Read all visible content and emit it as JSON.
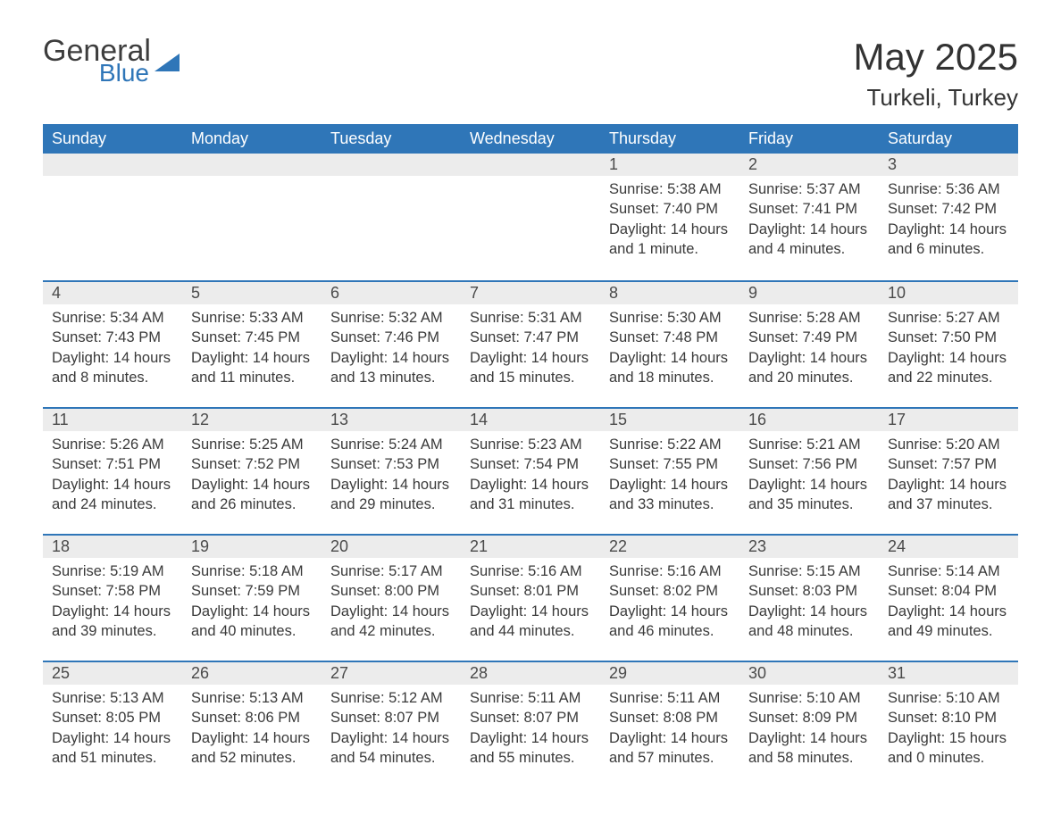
{
  "brand": {
    "word1": "General",
    "word2": "Blue"
  },
  "title": "May 2025",
  "location": "Turkeli, Turkey",
  "colors": {
    "accent": "#2f76b8",
    "header_bg": "#2f76b8",
    "header_text": "#ffffff",
    "daynum_bg": "#ececec",
    "text": "#3a3a3a",
    "background": "#ffffff"
  },
  "weekday_labels": [
    "Sunday",
    "Monday",
    "Tuesday",
    "Wednesday",
    "Thursday",
    "Friday",
    "Saturday"
  ],
  "sunrise_label": "Sunrise:",
  "sunset_label": "Sunset:",
  "daylight_label": "Daylight:",
  "weeks": [
    [
      {
        "empty": true
      },
      {
        "empty": true
      },
      {
        "empty": true
      },
      {
        "empty": true
      },
      {
        "n": "1",
        "sunrise": "5:38 AM",
        "sunset": "7:40 PM",
        "daylight": "14 hours and 1 minute."
      },
      {
        "n": "2",
        "sunrise": "5:37 AM",
        "sunset": "7:41 PM",
        "daylight": "14 hours and 4 minutes."
      },
      {
        "n": "3",
        "sunrise": "5:36 AM",
        "sunset": "7:42 PM",
        "daylight": "14 hours and 6 minutes."
      }
    ],
    [
      {
        "n": "4",
        "sunrise": "5:34 AM",
        "sunset": "7:43 PM",
        "daylight": "14 hours and 8 minutes."
      },
      {
        "n": "5",
        "sunrise": "5:33 AM",
        "sunset": "7:45 PM",
        "daylight": "14 hours and 11 minutes."
      },
      {
        "n": "6",
        "sunrise": "5:32 AM",
        "sunset": "7:46 PM",
        "daylight": "14 hours and 13 minutes."
      },
      {
        "n": "7",
        "sunrise": "5:31 AM",
        "sunset": "7:47 PM",
        "daylight": "14 hours and 15 minutes."
      },
      {
        "n": "8",
        "sunrise": "5:30 AM",
        "sunset": "7:48 PM",
        "daylight": "14 hours and 18 minutes."
      },
      {
        "n": "9",
        "sunrise": "5:28 AM",
        "sunset": "7:49 PM",
        "daylight": "14 hours and 20 minutes."
      },
      {
        "n": "10",
        "sunrise": "5:27 AM",
        "sunset": "7:50 PM",
        "daylight": "14 hours and 22 minutes."
      }
    ],
    [
      {
        "n": "11",
        "sunrise": "5:26 AM",
        "sunset": "7:51 PM",
        "daylight": "14 hours and 24 minutes."
      },
      {
        "n": "12",
        "sunrise": "5:25 AM",
        "sunset": "7:52 PM",
        "daylight": "14 hours and 26 minutes."
      },
      {
        "n": "13",
        "sunrise": "5:24 AM",
        "sunset": "7:53 PM",
        "daylight": "14 hours and 29 minutes."
      },
      {
        "n": "14",
        "sunrise": "5:23 AM",
        "sunset": "7:54 PM",
        "daylight": "14 hours and 31 minutes."
      },
      {
        "n": "15",
        "sunrise": "5:22 AM",
        "sunset": "7:55 PM",
        "daylight": "14 hours and 33 minutes."
      },
      {
        "n": "16",
        "sunrise": "5:21 AM",
        "sunset": "7:56 PM",
        "daylight": "14 hours and 35 minutes."
      },
      {
        "n": "17",
        "sunrise": "5:20 AM",
        "sunset": "7:57 PM",
        "daylight": "14 hours and 37 minutes."
      }
    ],
    [
      {
        "n": "18",
        "sunrise": "5:19 AM",
        "sunset": "7:58 PM",
        "daylight": "14 hours and 39 minutes."
      },
      {
        "n": "19",
        "sunrise": "5:18 AM",
        "sunset": "7:59 PM",
        "daylight": "14 hours and 40 minutes."
      },
      {
        "n": "20",
        "sunrise": "5:17 AM",
        "sunset": "8:00 PM",
        "daylight": "14 hours and 42 minutes."
      },
      {
        "n": "21",
        "sunrise": "5:16 AM",
        "sunset": "8:01 PM",
        "daylight": "14 hours and 44 minutes."
      },
      {
        "n": "22",
        "sunrise": "5:16 AM",
        "sunset": "8:02 PM",
        "daylight": "14 hours and 46 minutes."
      },
      {
        "n": "23",
        "sunrise": "5:15 AM",
        "sunset": "8:03 PM",
        "daylight": "14 hours and 48 minutes."
      },
      {
        "n": "24",
        "sunrise": "5:14 AM",
        "sunset": "8:04 PM",
        "daylight": "14 hours and 49 minutes."
      }
    ],
    [
      {
        "n": "25",
        "sunrise": "5:13 AM",
        "sunset": "8:05 PM",
        "daylight": "14 hours and 51 minutes."
      },
      {
        "n": "26",
        "sunrise": "5:13 AM",
        "sunset": "8:06 PM",
        "daylight": "14 hours and 52 minutes."
      },
      {
        "n": "27",
        "sunrise": "5:12 AM",
        "sunset": "8:07 PM",
        "daylight": "14 hours and 54 minutes."
      },
      {
        "n": "28",
        "sunrise": "5:11 AM",
        "sunset": "8:07 PM",
        "daylight": "14 hours and 55 minutes."
      },
      {
        "n": "29",
        "sunrise": "5:11 AM",
        "sunset": "8:08 PM",
        "daylight": "14 hours and 57 minutes."
      },
      {
        "n": "30",
        "sunrise": "5:10 AM",
        "sunset": "8:09 PM",
        "daylight": "14 hours and 58 minutes."
      },
      {
        "n": "31",
        "sunrise": "5:10 AM",
        "sunset": "8:10 PM",
        "daylight": "15 hours and 0 minutes."
      }
    ]
  ]
}
